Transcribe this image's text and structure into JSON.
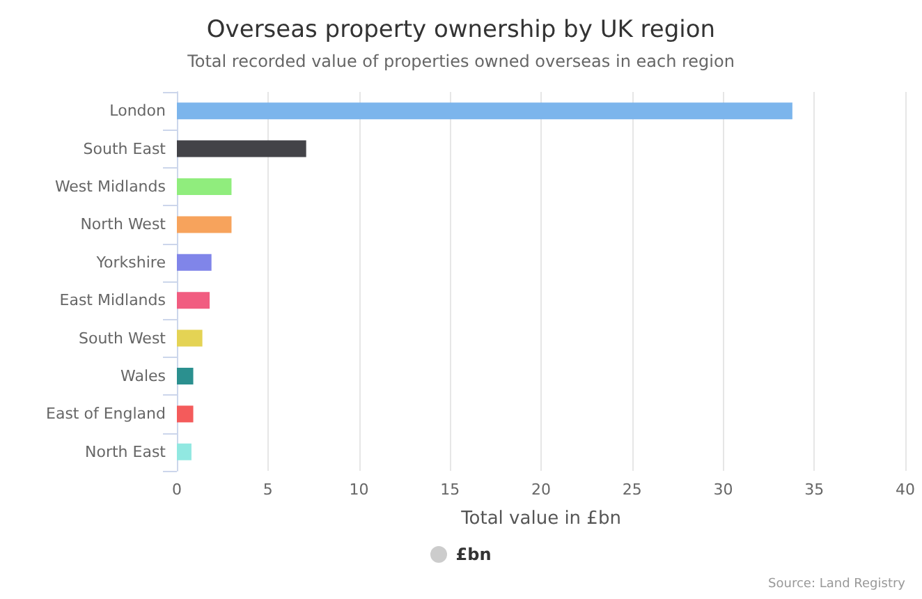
{
  "chart_data": {
    "type": "bar",
    "orientation": "horizontal",
    "title": "Overseas property ownership by UK region",
    "subtitle": "Total recorded value of properties owned overseas in each region",
    "xlabel": "Total value in £bn",
    "categories": [
      "London",
      "South East",
      "West Midlands",
      "North West",
      "Yorkshire",
      "East Midlands",
      "South West",
      "Wales",
      "East of England",
      "North East"
    ],
    "series": [
      {
        "name": "£bn",
        "values": [
          33.8,
          7.1,
          3.0,
          3.0,
          1.9,
          1.8,
          1.4,
          0.9,
          0.9,
          0.8
        ]
      }
    ],
    "colors": [
      "#7cb5ec",
      "#434348",
      "#90ed7d",
      "#f7a35c",
      "#8085e9",
      "#f15c80",
      "#e4d354",
      "#2b908f",
      "#f45b5b",
      "#91e8e1"
    ],
    "xlim": [
      0,
      40
    ],
    "xticks": [
      0,
      5,
      10,
      15,
      20,
      25,
      30,
      35,
      40
    ],
    "grid": "x",
    "legend": "bottom",
    "annotations": [
      "Source: Land Registry"
    ]
  }
}
